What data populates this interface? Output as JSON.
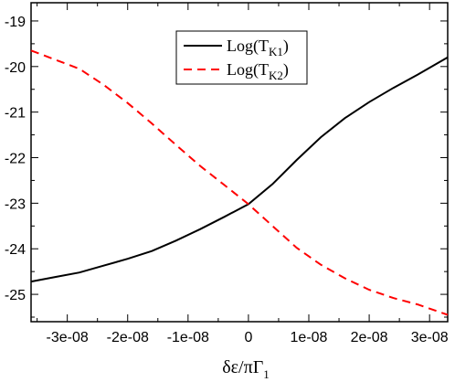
{
  "chart_data": {
    "type": "line",
    "title": "",
    "xlabel": {
      "main": "δε/πΓ",
      "sub": "1"
    },
    "ylabel": "",
    "xlim": [
      -3.6e-08,
      3.3e-08
    ],
    "ylim": [
      -25.6,
      -18.6
    ],
    "grid": false,
    "legend_position": "top-center",
    "x_ticks": [
      {
        "value": -3e-08,
        "label": "-3e-08"
      },
      {
        "value": -2e-08,
        "label": "-2e-08"
      },
      {
        "value": -1e-08,
        "label": "-1e-08"
      },
      {
        "value": 0,
        "label": "0"
      },
      {
        "value": 1e-08,
        "label": "1e-08"
      },
      {
        "value": 2e-08,
        "label": "2e-08"
      },
      {
        "value": 3e-08,
        "label": "3e-08"
      }
    ],
    "y_ticks": [
      {
        "value": -19,
        "label": "-19"
      },
      {
        "value": -20,
        "label": "-20"
      },
      {
        "value": -21,
        "label": "-21"
      },
      {
        "value": -22,
        "label": "-22"
      },
      {
        "value": -23,
        "label": "-23"
      },
      {
        "value": -24,
        "label": "-24"
      },
      {
        "value": -25,
        "label": "-25"
      }
    ],
    "series": [
      {
        "name": "Log(T",
        "name_sub": "K1",
        "name_suffix": ")",
        "color": "#000000",
        "dash": "solid",
        "x": [
          -3.6e-08,
          -3.2e-08,
          -2.8e-08,
          -2.4e-08,
          -2e-08,
          -1.6e-08,
          -1.2e-08,
          -8e-09,
          -4e-09,
          0,
          4e-09,
          8e-09,
          1.2e-08,
          1.6e-08,
          2e-08,
          2.4e-08,
          2.8e-08,
          3.3e-08
        ],
        "y": [
          -24.72,
          -24.62,
          -24.52,
          -24.37,
          -24.22,
          -24.05,
          -23.82,
          -23.57,
          -23.3,
          -23.02,
          -22.58,
          -22.05,
          -21.55,
          -21.13,
          -20.78,
          -20.47,
          -20.18,
          -19.8
        ]
      },
      {
        "name": "Log(T",
        "name_sub": "K2",
        "name_suffix": ")",
        "color": "#ff0000",
        "dash": "dashed",
        "x": [
          -3.6e-08,
          -3.2e-08,
          -2.8e-08,
          -2.4e-08,
          -2e-08,
          -1.6e-08,
          -1.2e-08,
          -8e-09,
          -4e-09,
          0,
          4e-09,
          8e-09,
          1.2e-08,
          1.6e-08,
          2e-08,
          2.4e-08,
          2.8e-08,
          3.3e-08
        ],
        "y": [
          -19.65,
          -19.85,
          -20.05,
          -20.4,
          -20.8,
          -21.25,
          -21.72,
          -22.18,
          -22.6,
          -23.02,
          -23.5,
          -23.98,
          -24.35,
          -24.65,
          -24.9,
          -25.08,
          -25.22,
          -25.45
        ]
      }
    ]
  }
}
